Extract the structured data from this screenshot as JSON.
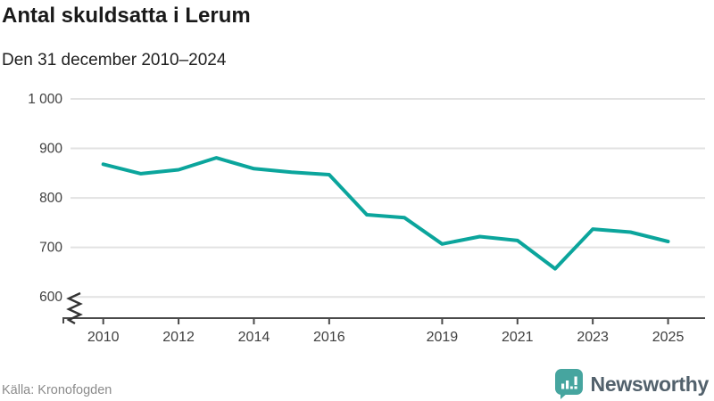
{
  "header": {
    "title": "Antal skuldsatta i Lerum",
    "subtitle": "Den 31 december 2010–2024"
  },
  "footer": {
    "source": "Källa: Kronofogden",
    "brand": "Newsworthy",
    "logo_icon": "bar-chart-speech-bubble-icon"
  },
  "colors": {
    "line": "#0ba59c",
    "grid": "#e2e2e2",
    "axis": "#4a4a4a",
    "tick_text": "#3f3f3f",
    "title_text": "#1a1a1a",
    "source_text": "#8b8b8b",
    "brand_text": "#52616c",
    "logo_bg": "#46a59f",
    "background": "#ffffff"
  },
  "chart_data": {
    "type": "line",
    "title": "Antal skuldsatta i Lerum",
    "subtitle": "Den 31 december 2010–2024",
    "xlabel": "",
    "ylabel": "",
    "grid": "horizontal",
    "legend": "none",
    "y_axis_break": true,
    "ylim": [
      600,
      1000
    ],
    "y_ticks": [
      {
        "value": 1000,
        "label": "1 000"
      },
      {
        "value": 900,
        "label": "900"
      },
      {
        "value": 800,
        "label": "800"
      },
      {
        "value": 700,
        "label": "700"
      },
      {
        "value": 600,
        "label": "600"
      }
    ],
    "x_tick_labels": [
      2010,
      2012,
      2014,
      2016,
      2019,
      2021,
      2023,
      2025
    ],
    "x": [
      2010,
      2011,
      2012,
      2013,
      2014,
      2015,
      2016,
      2017,
      2018,
      2019,
      2020,
      2021,
      2022,
      2023,
      2024,
      2025
    ],
    "series": [
      {
        "name": "Antal skuldsatta",
        "values": [
          868,
          849,
          857,
          881,
          859,
          852,
          847,
          766,
          760,
          707,
          722,
          714,
          657,
          737,
          731,
          712
        ]
      }
    ]
  }
}
